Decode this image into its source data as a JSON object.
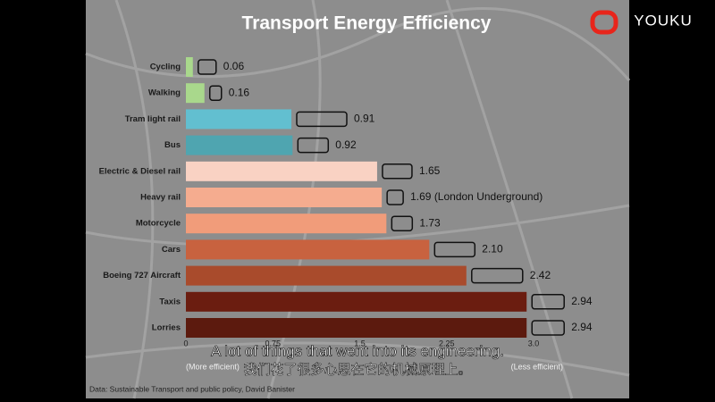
{
  "chart_data": {
    "type": "hbar",
    "title": "Transport Energy Efficiency",
    "categories": [
      "Cycling",
      "Walking",
      "Tram light rail",
      "Bus",
      "Electric & Diesel rail",
      "Heavy rail",
      "Motorcycle",
      "Cars",
      "Boeing 727 Aircraft",
      "Taxis",
      "Lorries"
    ],
    "values": [
      0.06,
      0.16,
      0.91,
      0.92,
      1.65,
      1.69,
      1.73,
      2.1,
      2.42,
      2.94,
      2.94
    ],
    "value_labels": [
      "0.06",
      "0.16",
      "0.91",
      "0.92",
      "1.65",
      "1.69 (London Underground)",
      "1.73",
      "2.10",
      "2.42",
      "2.94",
      "2.94"
    ],
    "colors": [
      "#a9d88c",
      "#a9d88c",
      "#62bfd0",
      "#4fa5b0",
      "#f9d2c3",
      "#f5ac8f",
      "#f19c7a",
      "#c8623f",
      "#a94b2c",
      "#6b1d10",
      "#5c1a0e"
    ],
    "xlim": [
      0,
      3
    ],
    "xticks": [
      0,
      0.75,
      1.5,
      2.25,
      {
        "value": 3,
        "label": "3.0"
      }
    ],
    "x_left_note": "(More efficient)",
    "x_right_note": "(Less efficient)",
    "source": "Data: Sustainable Transport and public policy, David Banister"
  },
  "player": {
    "logo": "YOUKU",
    "subtitle_en": "A lot of things that went into its engineering.",
    "subtitle_zh": "我们花了很多心思在它的机械原理上。"
  }
}
